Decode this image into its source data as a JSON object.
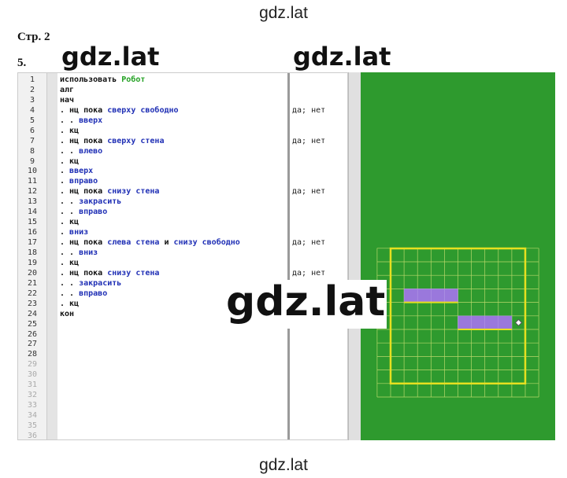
{
  "watermarks": {
    "top": "gdz.lat",
    "bottom": "gdz.lat",
    "left": "gdz.lat",
    "right": "gdz.lat",
    "center": "gdz.lat"
  },
  "header": {
    "page": "Стр. 2",
    "task": "5."
  },
  "editor": {
    "line_numbers": [
      1,
      2,
      3,
      4,
      5,
      6,
      7,
      8,
      9,
      10,
      11,
      12,
      13,
      14,
      15,
      16,
      17,
      18,
      19,
      20,
      21,
      22,
      23,
      24,
      25,
      26,
      27,
      28,
      29,
      30,
      31,
      32,
      33,
      34,
      35,
      36
    ],
    "lines": [
      [
        {
          "text": "использовать "
        },
        {
          "text": "Робот",
          "color": "#22a022"
        }
      ],
      [
        {
          "text": "алг"
        }
      ],
      [
        {
          "text": "нач"
        }
      ],
      [
        {
          "text": ". нц пока "
        },
        {
          "text": "сверху свободно",
          "color": "#1f2fb5"
        }
      ],
      [
        {
          "text": ". . "
        },
        {
          "text": "вверх",
          "color": "#1f2fb5"
        }
      ],
      [
        {
          "text": ". кц"
        }
      ],
      [
        {
          "text": ". нц пока "
        },
        {
          "text": "сверху стена",
          "color": "#1f2fb5"
        }
      ],
      [
        {
          "text": ". . "
        },
        {
          "text": "влево",
          "color": "#1f2fb5"
        }
      ],
      [
        {
          "text": ". кц"
        }
      ],
      [
        {
          "text": ". "
        },
        {
          "text": "вверх",
          "color": "#1f2fb5"
        }
      ],
      [
        {
          "text": ". "
        },
        {
          "text": "вправо",
          "color": "#1f2fb5"
        }
      ],
      [
        {
          "text": ". нц пока "
        },
        {
          "text": "снизу стена",
          "color": "#1f2fb5"
        }
      ],
      [
        {
          "text": ". . "
        },
        {
          "text": "закрасить",
          "color": "#1f2fb5"
        }
      ],
      [
        {
          "text": ". . "
        },
        {
          "text": "вправо",
          "color": "#1f2fb5"
        }
      ],
      [
        {
          "text": ". кц"
        }
      ],
      [
        {
          "text": ". "
        },
        {
          "text": "вниз",
          "color": "#1f2fb5"
        }
      ],
      [
        {
          "text": ". нц пока "
        },
        {
          "text": "слева стена",
          "color": "#1f2fb5"
        },
        {
          "text": " и "
        },
        {
          "text": "снизу свободно",
          "color": "#1f2fb5"
        }
      ],
      [
        {
          "text": ". . "
        },
        {
          "text": "вниз",
          "color": "#1f2fb5"
        }
      ],
      [
        {
          "text": ". кц"
        }
      ],
      [
        {
          "text": ". нц пока "
        },
        {
          "text": "снизу стена",
          "color": "#1f2fb5"
        }
      ],
      [
        {
          "text": ". . "
        },
        {
          "text": "закрасить",
          "color": "#1f2fb5"
        }
      ],
      [
        {
          "text": ". . "
        },
        {
          "text": "вправо",
          "color": "#1f2fb5"
        }
      ],
      [
        {
          "text": ". кц"
        }
      ],
      [
        {
          "text": "кон"
        }
      ]
    ],
    "results": [
      {
        "line": 4,
        "text": "да; нет"
      },
      {
        "line": 7,
        "text": "да; нет"
      },
      {
        "line": 12,
        "text": "да; нет"
      },
      {
        "line": 17,
        "text": "да; нет"
      },
      {
        "line": 20,
        "text": "да; нет"
      }
    ]
  }
}
